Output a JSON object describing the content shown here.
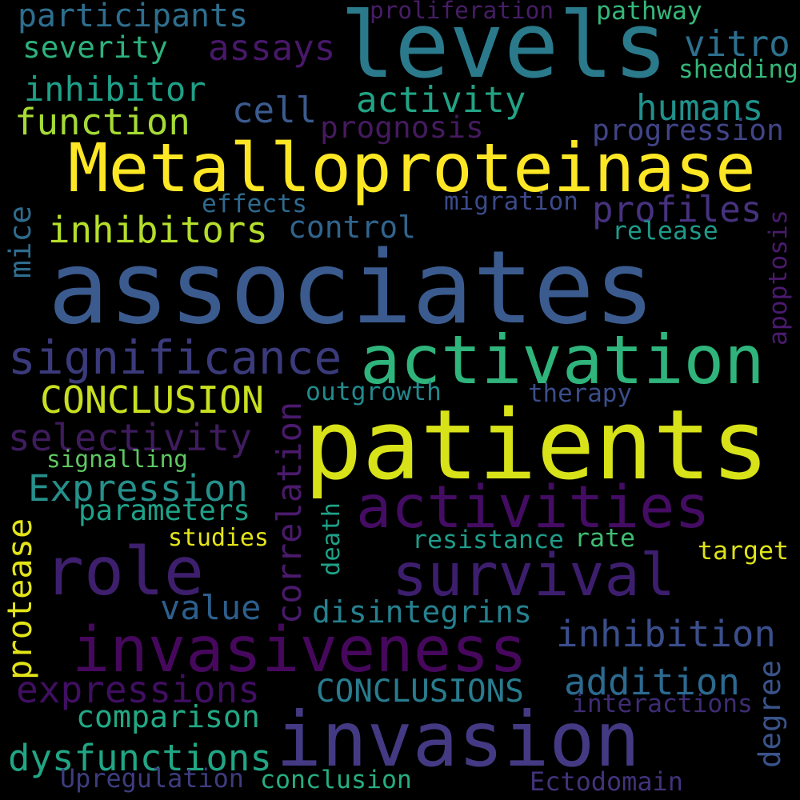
{
  "background": "#000000",
  "words": [
    {
      "text": "associates",
      "color": "#3b5b8f"
    },
    {
      "text": "patients",
      "color": "#d8e219"
    },
    {
      "text": "levels",
      "color": "#2a7a8c"
    },
    {
      "text": "Metalloproteinase",
      "color": "#fde725"
    },
    {
      "text": "activation",
      "color": "#2fb47c"
    },
    {
      "text": "invasion",
      "color": "#443a83"
    },
    {
      "text": "invasiveness",
      "color": "#46085c"
    },
    {
      "text": "activities",
      "color": "#440c63"
    },
    {
      "text": "survival",
      "color": "#3d1e6e"
    },
    {
      "text": "role",
      "color": "#3e1f6d"
    },
    {
      "text": "significance",
      "color": "#3b3a7b"
    },
    {
      "text": "correlation",
      "color": "#4a1a6c"
    },
    {
      "text": "protease",
      "color": "#e2e418"
    },
    {
      "text": "inhibitors",
      "color": "#b5de2b"
    },
    {
      "text": "CONCLUSION",
      "color": "#c8e020"
    },
    {
      "text": "selectivity",
      "color": "#3f1c5e"
    },
    {
      "text": "Expression",
      "color": "#26908b"
    },
    {
      "text": "expressions",
      "color": "#400f61"
    },
    {
      "text": "inhibition",
      "color": "#3b4e8b"
    },
    {
      "text": "addition",
      "color": "#2c6a90"
    },
    {
      "text": "dysfunctions",
      "color": "#21a685"
    },
    {
      "text": "CONCLUSIONS",
      "color": "#287c8e"
    },
    {
      "text": "disintegrins",
      "color": "#26808e"
    },
    {
      "text": "comparison",
      "color": "#22a884"
    },
    {
      "text": "value",
      "color": "#2c5f8d"
    },
    {
      "text": "inhibitor",
      "color": "#1fa088"
    },
    {
      "text": "function",
      "color": "#a6db35"
    },
    {
      "text": "participants",
      "color": "#2e6e8e"
    },
    {
      "text": "severity",
      "color": "#2db27d"
    },
    {
      "text": "assays",
      "color": "#48186a"
    },
    {
      "text": "activity",
      "color": "#22a385"
    },
    {
      "text": "humans",
      "color": "#21918c"
    },
    {
      "text": "vitro",
      "color": "#2d708e"
    },
    {
      "text": "cell",
      "color": "#3b5b8f"
    },
    {
      "text": "prognosis",
      "color": "#451a5e"
    },
    {
      "text": "progression",
      "color": "#414487"
    },
    {
      "text": "profiles",
      "color": "#46327e"
    },
    {
      "text": "control",
      "color": "#31648c"
    },
    {
      "text": "effects",
      "color": "#2e6a8e"
    },
    {
      "text": "migration",
      "color": "#3c4a8a"
    },
    {
      "text": "release",
      "color": "#1f9a8a"
    },
    {
      "text": "mice",
      "color": "#2f6c8e"
    },
    {
      "text": "apoptosis",
      "color": "#4b1a6f"
    },
    {
      "text": "outgrowth",
      "color": "#238a8d"
    },
    {
      "text": "therapy",
      "color": "#3b4d8a"
    },
    {
      "text": "signalling",
      "color": "#5fc863"
    },
    {
      "text": "parameters",
      "color": "#1fa188"
    },
    {
      "text": "studies",
      "color": "#e5e419"
    },
    {
      "text": "death",
      "color": "#1ea187"
    },
    {
      "text": "resistance",
      "color": "#1e9c89"
    },
    {
      "text": "rate",
      "color": "#40bd72"
    },
    {
      "text": "target",
      "color": "#dde318"
    },
    {
      "text": "interactions",
      "color": "#3f2c73"
    },
    {
      "text": "degree",
      "color": "#3a538b"
    },
    {
      "text": "Upregulation",
      "color": "#3d3d7f"
    },
    {
      "text": "conclusion",
      "color": "#27ad81"
    },
    {
      "text": "Ectodomain",
      "color": "#42337a"
    },
    {
      "text": "proliferation",
      "color": "#471d67"
    },
    {
      "text": "pathway",
      "color": "#35b779"
    },
    {
      "text": "shedding",
      "color": "#35b779"
    }
  ]
}
